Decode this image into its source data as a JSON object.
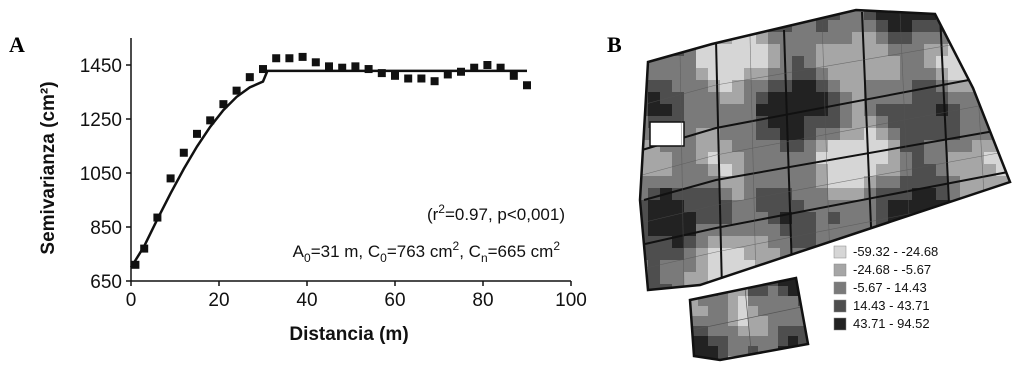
{
  "chart_data": [
    {
      "type": "scatter",
      "panel_label": "A",
      "xlabel": "Distancia (m)",
      "ylabel": "Semivarianza (cm²)",
      "xlim": [
        0,
        100
      ],
      "ylim": [
        650,
        1550
      ],
      "x_ticks": [
        0,
        20,
        40,
        60,
        80,
        100
      ],
      "y_ticks": [
        650,
        850,
        1050,
        1250,
        1450
      ],
      "grid": false,
      "series": [
        {
          "marker": "square",
          "x": [
            1,
            3,
            6,
            9,
            12,
            15,
            18,
            21,
            24,
            27,
            30,
            33,
            36,
            39,
            42,
            45,
            48,
            51,
            54,
            57,
            60,
            63,
            66,
            69,
            72,
            75,
            78,
            81,
            84,
            87,
            90
          ],
          "y": [
            710,
            770,
            885,
            1030,
            1125,
            1195,
            1245,
            1305,
            1355,
            1405,
            1435,
            1475,
            1475,
            1480,
            1460,
            1445,
            1440,
            1445,
            1435,
            1420,
            1410,
            1400,
            1400,
            1390,
            1415,
            1425,
            1440,
            1450,
            1440,
            1410,
            1375
          ]
        },
        {
          "line": "spherical-model-fit",
          "x": [
            0,
            3,
            6,
            9,
            12,
            15,
            18,
            21,
            24,
            27,
            30,
            31,
            40,
            50,
            60,
            70,
            80,
            90
          ],
          "y": [
            700,
            779,
            879,
            975,
            1065,
            1148,
            1221,
            1283,
            1332,
            1367,
            1389,
            1428,
            1428,
            1428,
            1428,
            1428,
            1428,
            1428
          ]
        }
      ],
      "annotations": {
        "fit_stats": "(r²=0.97, p<0,001)",
        "fit_stats_parts": {
          "prefix": "(r",
          "sup": "2",
          "suffix": "=0.97, p<0,001)"
        },
        "model_params": "A₀=31 m, C₀=763 cm², Cₙ=665 cm²",
        "model_params_parts": {
          "a_prefix": "A",
          "a_sub": "0",
          "a_val": "=31 m, ",
          "c0_prefix": "C",
          "c0_sub": "0",
          "c0_val": "=763 cm",
          "c0_sup": "2",
          "sep": ", ",
          "cn_prefix": "C",
          "cn_sub": "n",
          "cn_val": "=665 cm",
          "cn_sup": "2"
        }
      }
    },
    {
      "type": "heatmap",
      "panel_label": "B",
      "legend": [
        {
          "label": "-59.32 - -24.68",
          "color": "#d6d6d6"
        },
        {
          "label": "-24.68 - -5.67",
          "color": "#a6a6a6"
        },
        {
          "label": "-5.67 - 14.43",
          "color": "#7a7a7a"
        },
        {
          "label": "14.43 - 43.71",
          "color": "#4e4e4e"
        },
        {
          "label": "43.71 - 94.52",
          "color": "#222222"
        }
      ]
    }
  ]
}
